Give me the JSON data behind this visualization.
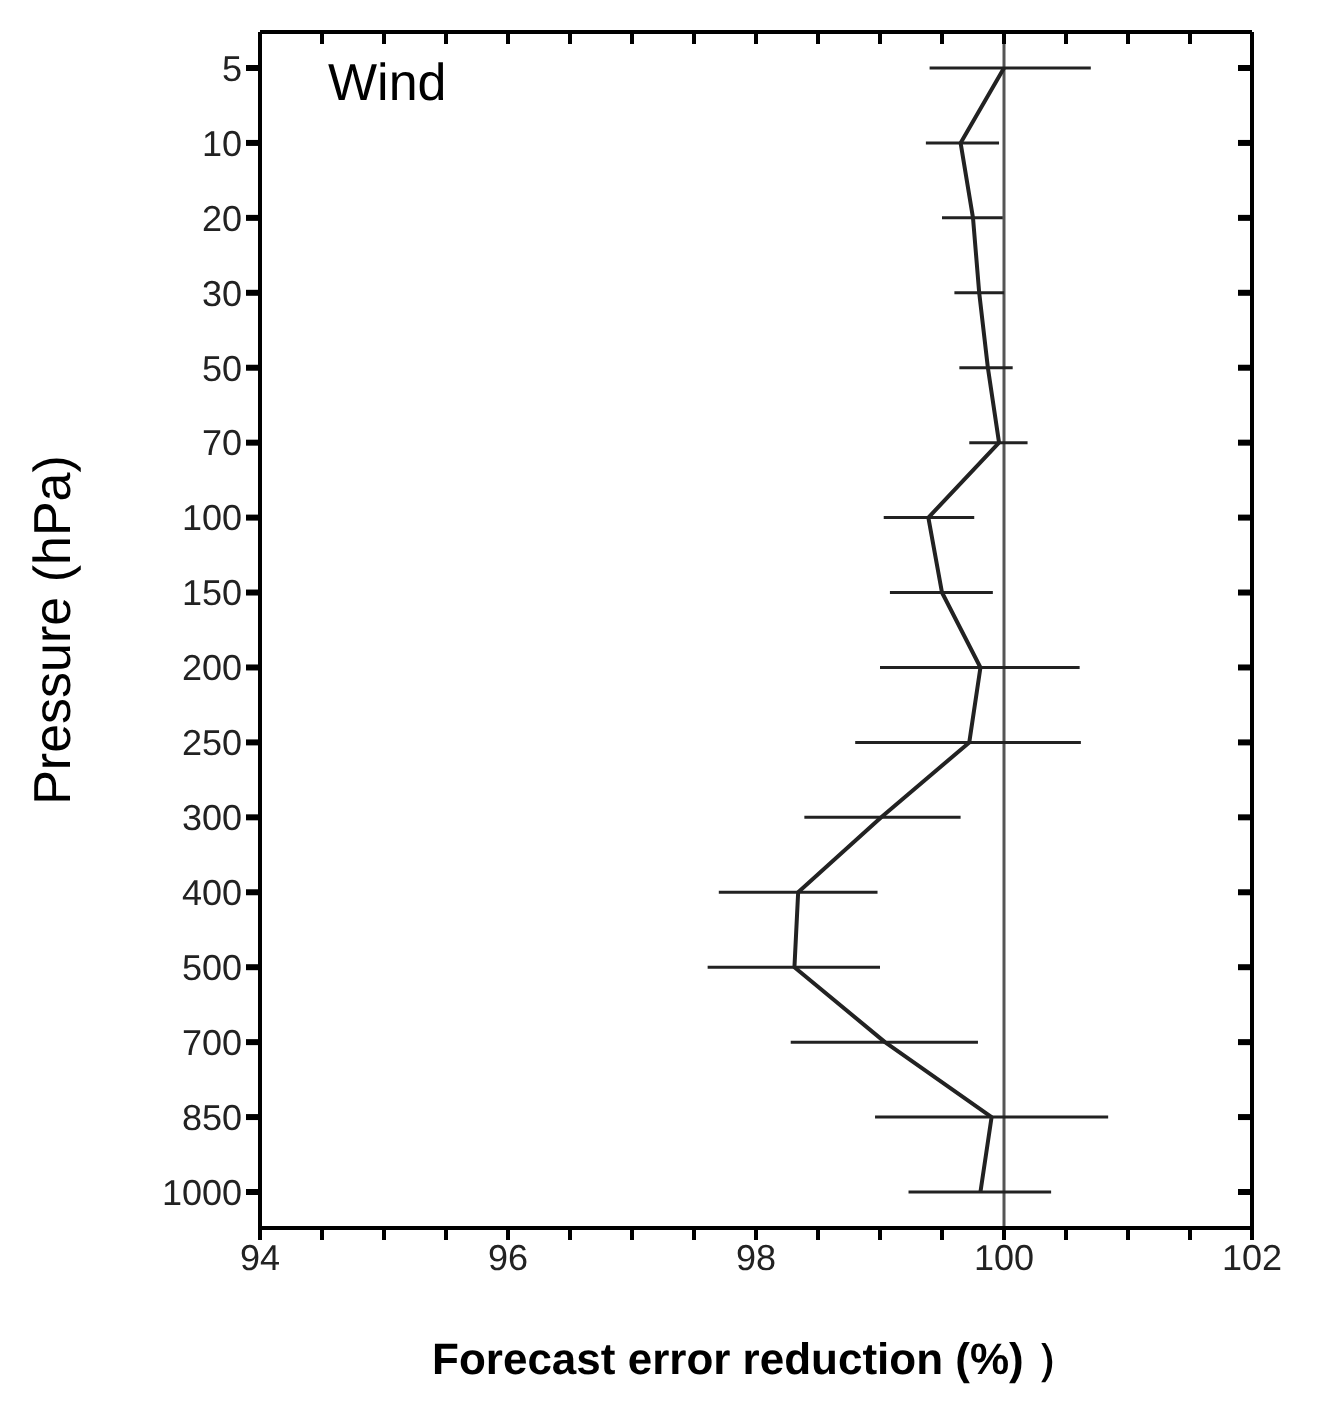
{
  "chart_data": {
    "type": "line",
    "orientation": "horizontal",
    "xlabel": "Forecast error reduction (%) ）",
    "ylabel": "Pressure (hPa)",
    "annotations": [
      "Wind"
    ],
    "categories": [
      "5",
      "10",
      "20",
      "30",
      "50",
      "70",
      "100",
      "150",
      "200",
      "250",
      "300",
      "400",
      "500",
      "700",
      "850",
      "1000"
    ],
    "series": [
      {
        "color": "#222222",
        "values": [
          100.0,
          99.65,
          99.75,
          99.8,
          99.87,
          99.96,
          99.39,
          99.5,
          99.81,
          99.72,
          99.01,
          98.34,
          98.31,
          99.04,
          99.9,
          99.81
        ],
        "errors": [
          [
            99.4,
            100.7
          ],
          [
            99.37,
            99.96
          ],
          [
            99.5,
            99.99
          ],
          [
            99.6,
            100.0
          ],
          [
            99.64,
            100.07
          ],
          [
            99.72,
            100.19
          ],
          [
            99.03,
            99.76
          ],
          [
            99.08,
            99.91
          ],
          [
            99.0,
            100.61
          ],
          [
            98.8,
            100.62
          ],
          [
            98.39,
            99.65
          ],
          [
            97.7,
            98.98
          ],
          [
            97.61,
            99.0
          ],
          [
            98.28,
            99.79
          ],
          [
            98.96,
            100.84
          ],
          [
            99.23,
            100.38
          ]
        ]
      }
    ],
    "xlim": [
      94,
      102
    ],
    "xticks": [
      94,
      {
        "value": 94.5,
        "label": null
      },
      {
        "value": 95,
        "label": null
      },
      {
        "value": 95.5,
        "label": null
      },
      96,
      {
        "value": 96.5,
        "label": null
      },
      {
        "value": 97,
        "label": null
      },
      {
        "value": 97.5,
        "label": null
      },
      98,
      {
        "value": 98.5,
        "label": null
      },
      {
        "value": 99,
        "label": null
      },
      {
        "value": 99.5,
        "label": null
      },
      100,
      {
        "value": 100.5,
        "label": null
      },
      {
        "value": 101,
        "label": null
      },
      {
        "value": 101.5,
        "label": null
      },
      102
    ],
    "ref_lines": [
      {
        "axis": "x",
        "value": 100,
        "color": "#555555"
      }
    ],
    "marker": "none",
    "grid": false
  }
}
